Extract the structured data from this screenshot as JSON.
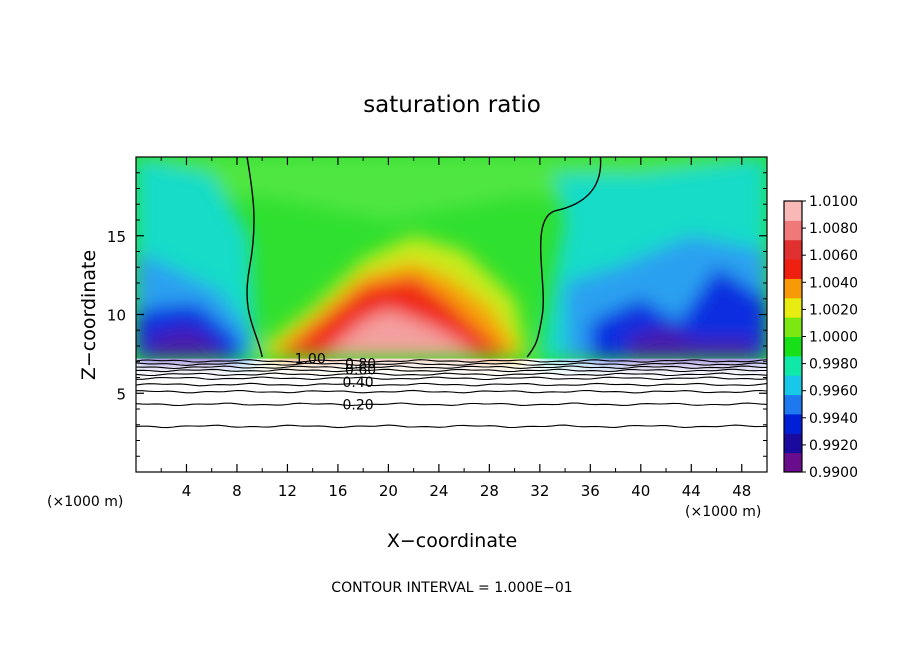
{
  "chart_data": {
    "type": "heatmap",
    "title": "saturation ratio",
    "xlabel": "X−coordinate",
    "ylabel": "Z−coordinate",
    "x_unit_left": "(×1000 m)",
    "x_unit_right": "(×1000 m)",
    "xlim": [
      0,
      50
    ],
    "ylim": [
      0,
      20
    ],
    "x_ticks": [
      4,
      8,
      12,
      16,
      20,
      24,
      28,
      32,
      36,
      40,
      44,
      48
    ],
    "y_ticks": [
      5,
      10,
      15
    ],
    "colorbar": {
      "min": 0.99,
      "max": 1.01,
      "tick_labels": [
        "1.0100",
        "1.0080",
        "1.0060",
        "1.0040",
        "1.0020",
        "1.0000",
        "0.9980",
        "0.9960",
        "0.9940",
        "0.9920",
        "0.9900"
      ],
      "colors": [
        "#6a0d8c",
        "#1a0a9e",
        "#0020d8",
        "#1e78f0",
        "#18c8e8",
        "#10e8a8",
        "#18e018",
        "#7ce812",
        "#e8ec10",
        "#f89a08",
        "#f02010",
        "#e03030",
        "#f07878",
        "#f8b8b8"
      ]
    },
    "contour_labels": [
      {
        "text": "1.00",
        "x": 13.8,
        "z": 7.2
      },
      {
        "text": "0.80",
        "x": 17.8,
        "z": 6.9
      },
      {
        "text": "0.60",
        "x": 17.8,
        "z": 6.5
      },
      {
        "text": "0.40",
        "x": 17.6,
        "z": 5.7
      },
      {
        "text": "0.20",
        "x": 17.6,
        "z": 4.3
      }
    ],
    "footer": "CONTOUR INTERVAL = 1.000E−01"
  }
}
